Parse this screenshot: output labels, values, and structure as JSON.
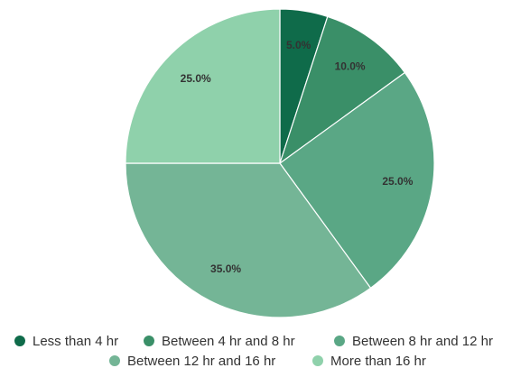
{
  "chart_data": {
    "type": "pie",
    "categories": [
      "Less than 4 hr",
      "Between 4 hr and 8 hr",
      "Between 8 hr and 12 hr",
      "Between 12 hr and 16 hr",
      "More than 16 hr"
    ],
    "values": [
      5,
      10,
      25,
      35,
      25
    ],
    "value_labels": [
      "5.0%",
      "10.0%",
      "25.0%",
      "35.0%",
      "25.0%"
    ],
    "colors": [
      "#0f6b4a",
      "#3a8f68",
      "#5aa785",
      "#74b596",
      "#8fd1ab"
    ]
  }
}
